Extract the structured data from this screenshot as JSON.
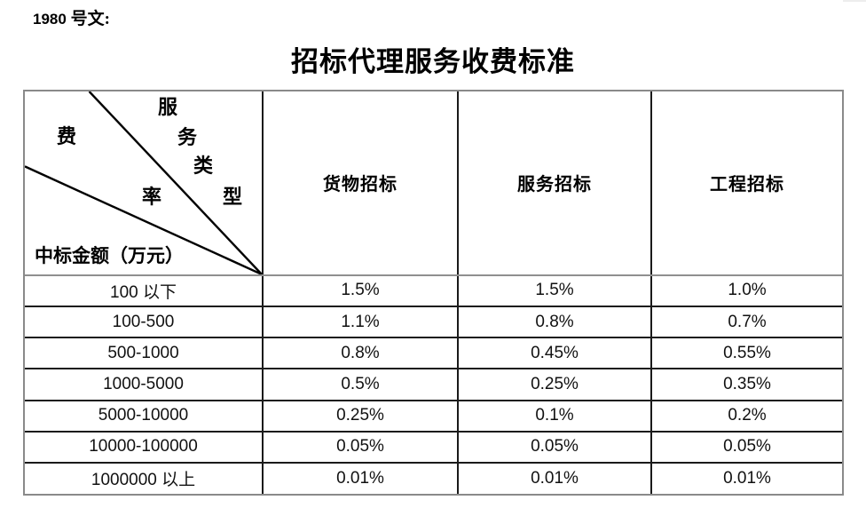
{
  "page": {
    "doc_label_number": "1980",
    "doc_label_text": "号文:",
    "title": "招标代理服务收费标准"
  },
  "colors": {
    "background": "#ffffff",
    "text": "#000000",
    "border_outer": "#8a8a8a",
    "border_inner": "#1a1a1a",
    "diagonal_line": "#000000"
  },
  "table": {
    "corner": {
      "diag_label": "服务类型",
      "diag_label_chars": [
        "服",
        "务",
        "类",
        "型"
      ],
      "fee_label": "费率",
      "fee_label_chars": [
        "费",
        "率"
      ],
      "row_axis_label": "中标金额（万元）"
    },
    "columns": [
      "货物招标",
      "服务招标",
      "工程招标"
    ],
    "rows": [
      {
        "range": "100 以下",
        "values": [
          "1.5%",
          "1.5%",
          "1.0%"
        ]
      },
      {
        "range": "100-500",
        "values": [
          "1.1%",
          "0.8%",
          "0.7%"
        ]
      },
      {
        "range": "500-1000",
        "values": [
          "0.8%",
          "0.45%",
          "0.55%"
        ]
      },
      {
        "range": "1000-5000",
        "values": [
          "0.5%",
          "0.25%",
          "0.35%"
        ]
      },
      {
        "range": "5000-10000",
        "values": [
          "0.25%",
          "0.1%",
          "0.2%"
        ]
      },
      {
        "range": "10000-100000",
        "values": [
          "0.05%",
          "0.05%",
          "0.05%"
        ]
      },
      {
        "range": "1000000 以上",
        "values": [
          "0.01%",
          "0.01%",
          "0.01%"
        ]
      }
    ]
  }
}
